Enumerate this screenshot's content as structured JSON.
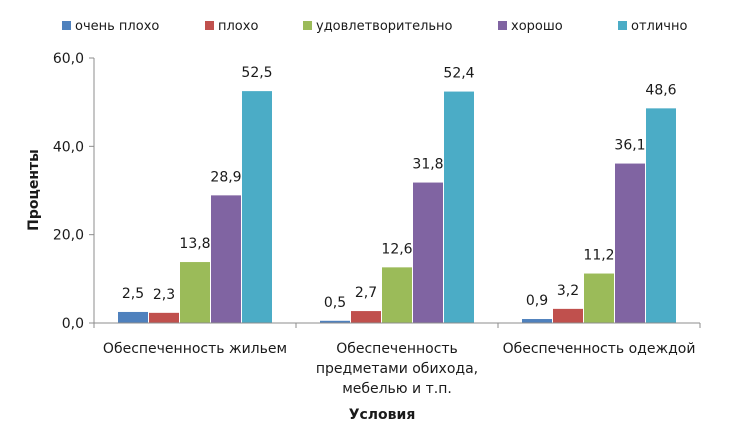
{
  "chart_data": {
    "type": "bar",
    "title": "",
    "xlabel": "Условия",
    "ylabel": "Проценты",
    "ylim": [
      0,
      60
    ],
    "yticks": [
      "0,0",
      "20,0",
      "40,0",
      "60,0"
    ],
    "grid": false,
    "legend_position": "top",
    "categories": [
      [
        "Обеспеченность жильем"
      ],
      [
        "Обеспеченность",
        "предметами обихода,",
        "мебелью и т.п."
      ],
      [
        "Обеспеченность одеждой"
      ]
    ],
    "series": [
      {
        "name": "очень плохо",
        "color": "#4F81BD",
        "values": [
          2.5,
          0.5,
          0.9
        ],
        "labels": [
          "2,5",
          "0,5",
          "0,9"
        ]
      },
      {
        "name": "плохо",
        "color": "#C0504D",
        "values": [
          2.3,
          2.7,
          3.2
        ],
        "labels": [
          "2,3",
          "2,7",
          "3,2"
        ]
      },
      {
        "name": "удовлетворительно",
        "color": "#9BBB59",
        "values": [
          13.8,
          12.6,
          11.2
        ],
        "labels": [
          "13,8",
          "12,6",
          "11,2"
        ]
      },
      {
        "name": "хорошо",
        "color": "#8064A2",
        "values": [
          28.9,
          31.8,
          36.1
        ],
        "labels": [
          "28,9",
          "31,8",
          "36,1"
        ]
      },
      {
        "name": "отлично",
        "color": "#4BACC6",
        "values": [
          52.5,
          52.4,
          48.6
        ],
        "labels": [
          "52,5",
          "52,4",
          "48,6"
        ]
      }
    ]
  }
}
